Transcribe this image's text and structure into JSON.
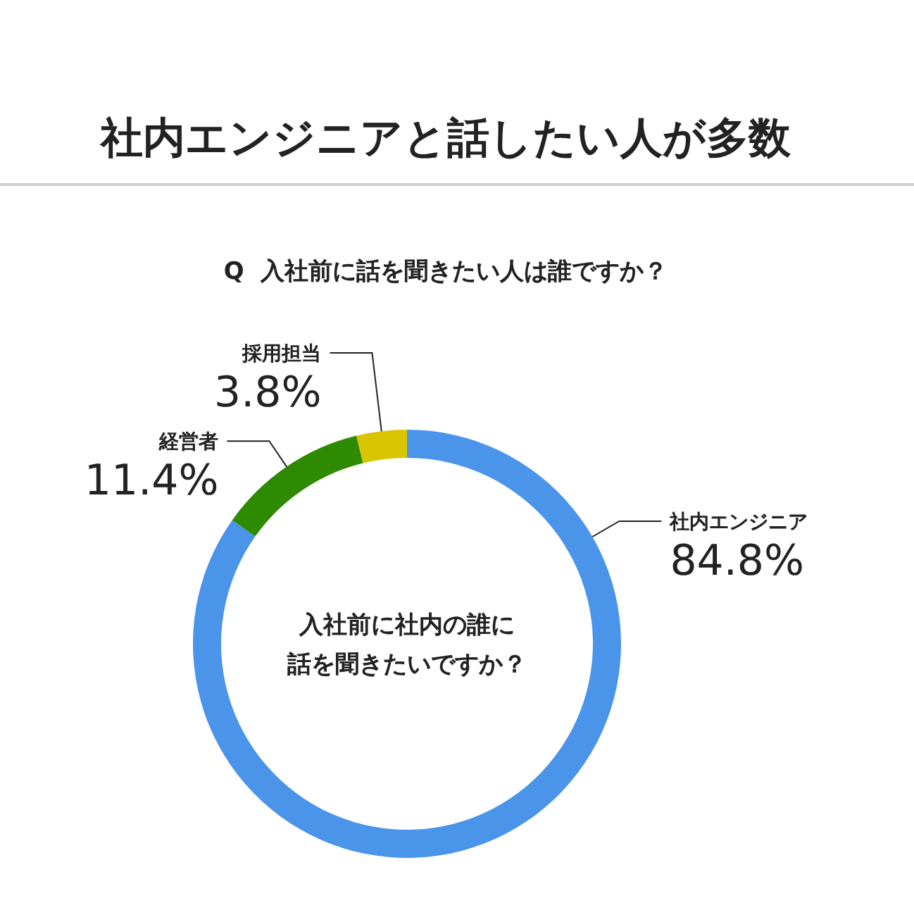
{
  "chart_data": {
    "type": "donut",
    "title": "社内エンジニアと話したい人が多数",
    "subtitle": "Q  入社前に話を聞きたい人は誰ですか？",
    "categories": [
      "社内エンジニア",
      "経営者",
      "採用担当"
    ],
    "values": [
      84.8,
      11.4,
      3.8
    ],
    "colors": [
      "#4a94ea",
      "#2e8a00",
      "#d9c400"
    ],
    "value_labels": [
      "84.8%",
      "11.4%",
      "3.8%"
    ],
    "annotations": [
      "入社前に社内の誰に話を聞きたいですか？"
    ]
  }
}
